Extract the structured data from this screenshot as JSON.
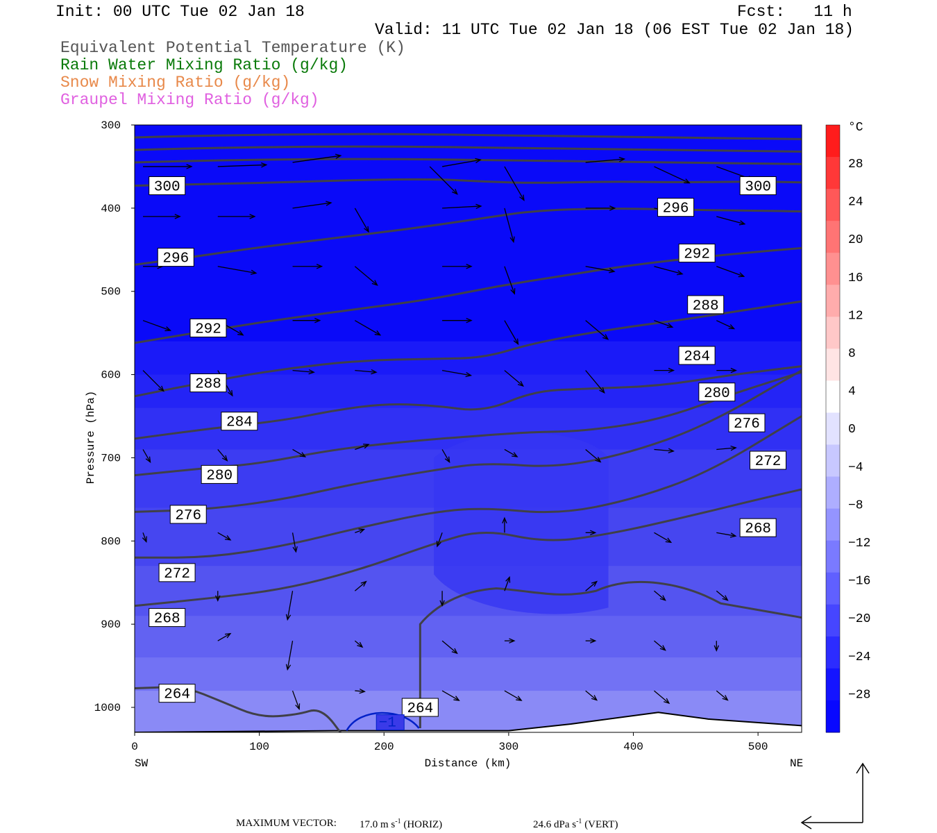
{
  "header": {
    "init": "Init: 00 UTC Tue 02 Jan 18",
    "fcst": "Fcst:   11 h",
    "valid": "Valid: 11 UTC Tue 02 Jan 18 (06 EST Tue 02 Jan 18)",
    "fields": [
      {
        "label": "Equivalent Potential Temperature (K)",
        "color": "#555555"
      },
      {
        "label": "Rain Water Mixing Ratio (g/kg)",
        "color": "#0a7a0a"
      },
      {
        "label": "Snow Mixing Ratio (g/kg)",
        "color": "#e8894a"
      },
      {
        "label": "Graupel Mixing Ratio (g/kg)",
        "color": "#e060e0"
      }
    ]
  },
  "footer": {
    "max_vector_label": "MAXIMUM VECTOR:",
    "horiz_value": "17.0 m s",
    "horiz_unit": "-1",
    "horiz_tag": "(HORIZ)",
    "vert_value": "24.6 dPa s",
    "vert_unit": "-1",
    "vert_tag": "(VERT)"
  },
  "chart_data": {
    "type": "cross-section",
    "xlabel": "Distance (km)",
    "ylabel": "Pressure (hPa)",
    "x_ticks": [
      0,
      100,
      200,
      300,
      400,
      500
    ],
    "xlim": [
      0,
      535
    ],
    "y_ticks": [
      300,
      400,
      500,
      600,
      700,
      800,
      900,
      1000
    ],
    "ylim": [
      300,
      1030
    ],
    "x_left_label": "SW",
    "x_right_label": "NE",
    "colorbar": {
      "unit": "°C",
      "labels": [
        "28",
        "24",
        "20",
        "16",
        "12",
        "8",
        "4",
        "0",
        "−4",
        "−8",
        "−12",
        "−16",
        "−20",
        "−24",
        "−28"
      ],
      "colors": [
        "#ff1c1c",
        "#ff3838",
        "#ff5858",
        "#ff7474",
        "#ff9090",
        "#ffacac",
        "#ffc8c8",
        "#ffe4e4",
        "#ffffff",
        "#e2e2ff",
        "#c8c8ff",
        "#aeaeff",
        "#9494ff",
        "#7a7aff",
        "#6060ff",
        "#4646ff",
        "#2c2cff",
        "#1414ff",
        "#0808ff"
      ]
    },
    "theta_e_contours": [
      {
        "label": "300",
        "points": [
          [
            0,
            373
          ],
          [
            60,
            371
          ],
          [
            120,
            369
          ],
          [
            180,
            366
          ],
          [
            240,
            365
          ],
          [
            280,
            368
          ],
          [
            320,
            370
          ],
          [
            380,
            368
          ],
          [
            440,
            369
          ],
          [
            500,
            368
          ],
          [
            535,
            369
          ]
        ]
      },
      {
        "label": "296",
        "points": [
          [
            0,
            468
          ],
          [
            40,
            460
          ],
          [
            100,
            447
          ],
          [
            160,
            436
          ],
          [
            220,
            425
          ],
          [
            280,
            412
          ],
          [
            320,
            403
          ],
          [
            380,
            400
          ],
          [
            440,
            402
          ],
          [
            500,
            403
          ],
          [
            535,
            404
          ]
        ]
      },
      {
        "label": "292",
        "points": [
          [
            0,
            562
          ],
          [
            60,
            547
          ],
          [
            120,
            533
          ],
          [
            180,
            521
          ],
          [
            240,
            509
          ],
          [
            290,
            494
          ],
          [
            340,
            482
          ],
          [
            400,
            468
          ],
          [
            460,
            458
          ],
          [
            510,
            451
          ],
          [
            535,
            448
          ]
        ]
      },
      {
        "label": "288",
        "points": [
          [
            0,
            626
          ],
          [
            60,
            608
          ],
          [
            120,
            593
          ],
          [
            180,
            583
          ],
          [
            240,
            581
          ],
          [
            280,
            580
          ],
          [
            320,
            562
          ],
          [
            380,
            546
          ],
          [
            440,
            534
          ],
          [
            500,
            520
          ],
          [
            535,
            512
          ]
        ]
      },
      {
        "label": "284",
        "points": [
          [
            0,
            677
          ],
          [
            60,
            665
          ],
          [
            120,
            655
          ],
          [
            160,
            643
          ],
          [
            200,
            635
          ],
          [
            240,
            637
          ],
          [
            280,
            645
          ],
          [
            320,
            620
          ],
          [
            360,
            617
          ],
          [
            420,
            614
          ],
          [
            480,
            600
          ],
          [
            535,
            590
          ]
        ]
      },
      {
        "label": "280",
        "points": [
          [
            0,
            721
          ],
          [
            60,
            712
          ],
          [
            100,
            707
          ],
          [
            160,
            690
          ],
          [
            220,
            680
          ],
          [
            280,
            673
          ],
          [
            320,
            669
          ],
          [
            360,
            668
          ],
          [
            420,
            655
          ],
          [
            480,
            623
          ],
          [
            535,
            597
          ]
        ]
      },
      {
        "label": "276",
        "points": [
          [
            0,
            765
          ],
          [
            60,
            762
          ],
          [
            120,
            750
          ],
          [
            180,
            730
          ],
          [
            240,
            715
          ],
          [
            280,
            706
          ],
          [
            340,
            712
          ],
          [
            400,
            693
          ],
          [
            460,
            660
          ],
          [
            535,
            595
          ]
        ]
      },
      {
        "label": "272",
        "points": [
          [
            0,
            820
          ],
          [
            60,
            820
          ],
          [
            120,
            806
          ],
          [
            180,
            784
          ],
          [
            240,
            765
          ],
          [
            280,
            760
          ],
          [
            340,
            768
          ],
          [
            400,
            750
          ],
          [
            460,
            718
          ],
          [
            535,
            650
          ]
        ]
      },
      {
        "label": "268",
        "points": [
          [
            0,
            878
          ],
          [
            60,
            869
          ],
          [
            120,
            858
          ],
          [
            180,
            835
          ],
          [
            240,
            803
          ],
          [
            280,
            786
          ],
          [
            330,
            802
          ],
          [
            380,
            792
          ],
          [
            440,
            772
          ],
          [
            500,
            750
          ],
          [
            535,
            738
          ]
        ]
      },
      {
        "label": "264",
        "points": [
          [
            0,
            977
          ],
          [
            40,
            975
          ],
          [
            70,
            993
          ],
          [
            100,
            1012
          ],
          [
            130,
            1009
          ],
          [
            150,
            1000
          ],
          [
            170,
            1040
          ]
        ]
      }
    ],
    "contour_labels": [
      {
        "text": "300",
        "x": 26,
        "p": 373
      },
      {
        "text": "300",
        "x": 500,
        "p": 373
      },
      {
        "text": "296",
        "x": 33,
        "p": 459
      },
      {
        "text": "296",
        "x": 434,
        "p": 399
      },
      {
        "text": "292",
        "x": 59,
        "p": 544
      },
      {
        "text": "292",
        "x": 451,
        "p": 454
      },
      {
        "text": "288",
        "x": 59,
        "p": 610
      },
      {
        "text": "288",
        "x": 458,
        "p": 516
      },
      {
        "text": "284",
        "x": 84,
        "p": 656
      },
      {
        "text": "284",
        "x": 451,
        "p": 577
      },
      {
        "text": "280",
        "x": 68,
        "p": 720
      },
      {
        "text": "280",
        "x": 467,
        "p": 621
      },
      {
        "text": "276",
        "x": 43,
        "p": 768
      },
      {
        "text": "276",
        "x": 491,
        "p": 658
      },
      {
        "text": "272",
        "x": 34,
        "p": 838
      },
      {
        "text": "272",
        "x": 508,
        "p": 703
      },
      {
        "text": "268",
        "x": 26,
        "p": 892
      },
      {
        "text": "268",
        "x": 500,
        "p": 784
      },
      {
        "text": "264",
        "x": 34,
        "p": 983
      },
      {
        "text": "264",
        "x": 229,
        "p": 1000
      }
    ],
    "rain_contour_label": "−1",
    "plot_area_color": "#0a0af8"
  }
}
